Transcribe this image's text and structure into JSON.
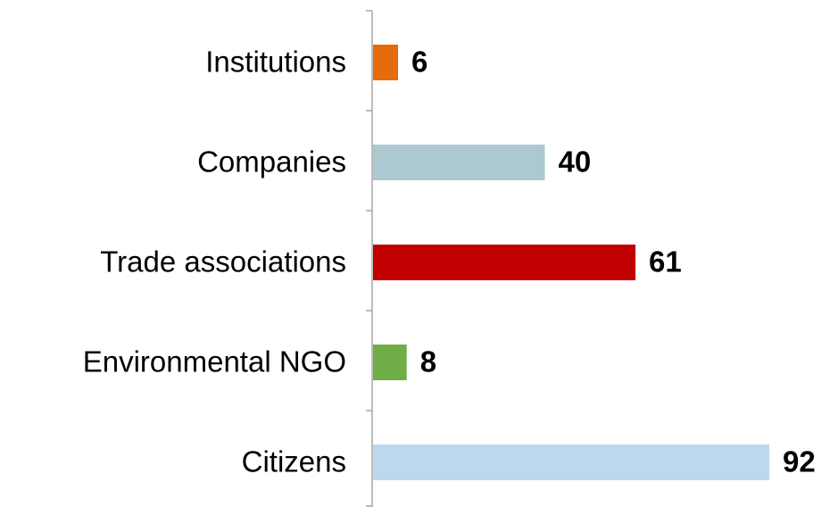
{
  "chart_data": {
    "type": "barh",
    "categories": [
      "Institutions",
      "Companies",
      "Trade associations",
      "Environmental NGO",
      "Citizens"
    ],
    "values": [
      6,
      40,
      61,
      8,
      92
    ],
    "colors": [
      "#e46c0a",
      "#acc8d0",
      "#c00000",
      "#70ad47",
      "#bdd7ee"
    ]
  }
}
